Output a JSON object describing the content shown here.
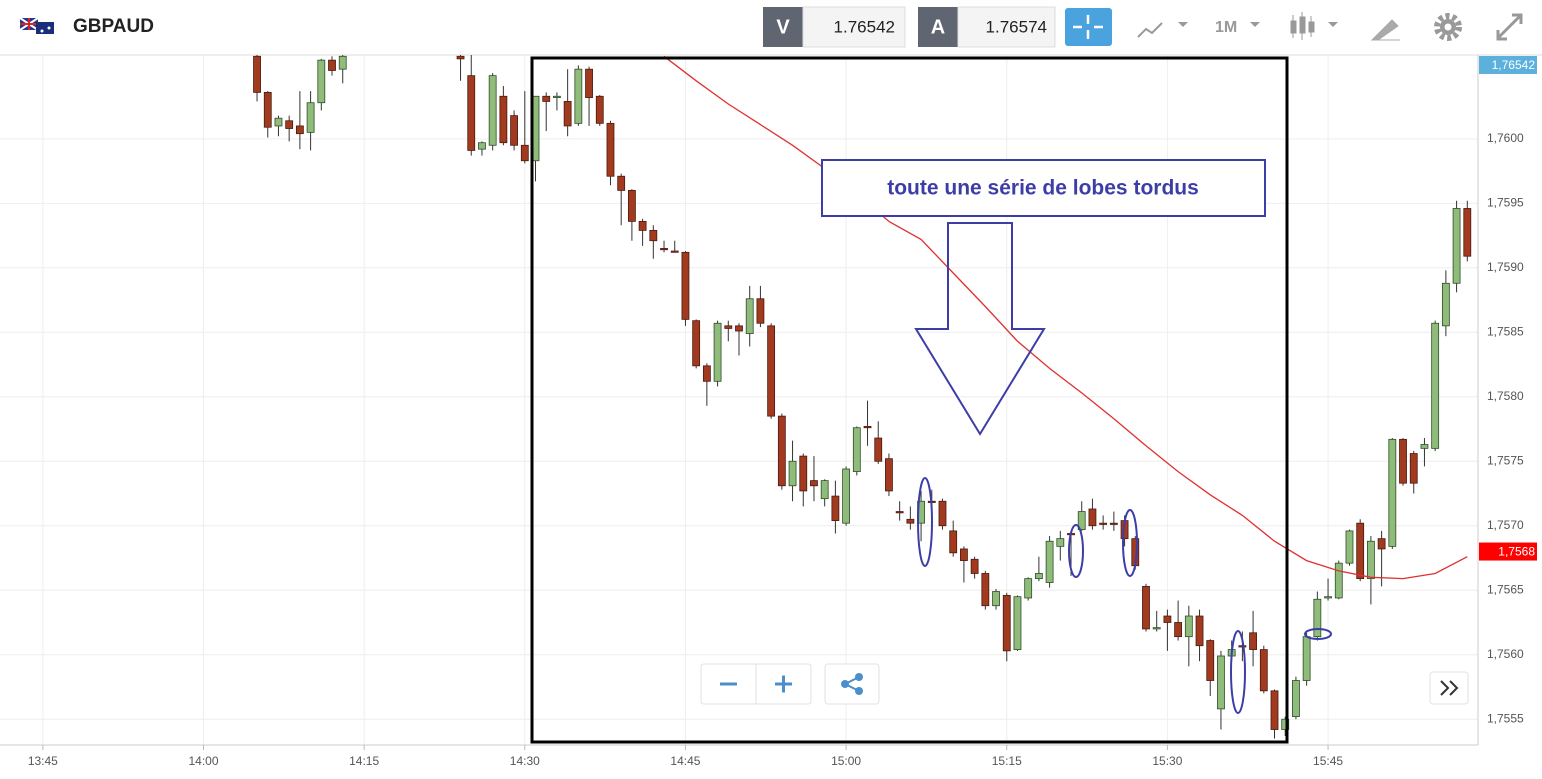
{
  "header": {
    "symbol": "GBPAUD",
    "bid_label": "V",
    "bid": "1.76542",
    "ask_label": "A",
    "ask": "1.76574",
    "timeframe": "1M"
  },
  "chart_data": {
    "type": "candlestick",
    "annotation": "toute une série de lobes tordus",
    "up_color": "#8fbc7a",
    "down_color": "#a23a1f",
    "ma_color": "#e03030",
    "grid": true,
    "xlim": [
      "13:41",
      "15:59"
    ],
    "xticks": [
      "13:45",
      "14:00",
      "14:15",
      "14:30",
      "14:45",
      "15:00",
      "15:15",
      "15:30",
      "15:45"
    ],
    "ylim": [
      1.7553,
      1.76065
    ],
    "yticks": [
      {
        "value": 1.7555,
        "label": "1,7555"
      },
      {
        "value": 1.756,
        "label": "1,7560"
      },
      {
        "value": 1.7565,
        "label": "1,7565"
      },
      {
        "value": 1.757,
        "label": "1,7570"
      },
      {
        "value": 1.7575,
        "label": "1,7575"
      },
      {
        "value": 1.758,
        "label": "1,7580"
      },
      {
        "value": 1.7585,
        "label": "1,7585"
      },
      {
        "value": 1.759,
        "label": "1,7590"
      },
      {
        "value": 1.7595,
        "label": "1,7595"
      },
      {
        "value": 1.76,
        "label": "1,7600"
      }
    ],
    "price_tags": [
      {
        "value": 1.76542,
        "label": "1,76542",
        "color": "#5bb0dc"
      },
      {
        "value": 1.7568,
        "label": "1,7568",
        "color": "#ff0000"
      }
    ],
    "x": [
      "14:05",
      "14:06",
      "14:07",
      "14:08",
      "14:09",
      "14:10",
      "14:11",
      "14:12",
      "14:13",
      "14:24",
      "14:25",
      "14:26",
      "14:27",
      "14:28",
      "14:29",
      "14:30",
      "14:31",
      "14:32",
      "14:33",
      "14:34",
      "14:35",
      "14:36",
      "14:37",
      "14:38",
      "14:39",
      "14:40",
      "14:41",
      "14:42",
      "14:43",
      "14:44",
      "14:45",
      "14:46",
      "14:47",
      "14:48",
      "14:49",
      "14:50",
      "14:51",
      "14:52",
      "14:53",
      "14:54",
      "14:55",
      "14:56",
      "14:57",
      "14:58",
      "14:59",
      "15:00",
      "15:01",
      "15:02",
      "15:03",
      "15:04",
      "15:05",
      "15:06",
      "15:07",
      "15:08",
      "15:09",
      "15:10",
      "15:11",
      "15:12",
      "15:13",
      "15:14",
      "15:15",
      "15:16",
      "15:17",
      "15:18",
      "15:19",
      "15:20",
      "15:21",
      "15:22",
      "15:23",
      "15:24",
      "15:25",
      "15:26",
      "15:27",
      "15:28",
      "15:29",
      "15:30",
      "15:31",
      "15:32",
      "15:33",
      "15:34",
      "15:35",
      "15:36",
      "15:37",
      "15:38",
      "15:39",
      "15:40",
      "15:41",
      "15:42",
      "15:43",
      "15:44",
      "15:45",
      "15:46",
      "15:47",
      "15:48",
      "15:49",
      "15:50",
      "15:51",
      "15:52",
      "15:53",
      "15:54",
      "15:55",
      "15:56",
      "15:57",
      "15:58"
    ],
    "open": [
      1.76064,
      1.76036,
      1.7601,
      1.76014,
      1.7601,
      1.76005,
      1.76028,
      1.76061,
      1.76054,
      1.76064,
      1.76049,
      1.75992,
      1.75995,
      1.76033,
      1.76018,
      1.75995,
      1.75983,
      1.76033,
      1.76032,
      1.76029,
      1.76012,
      1.76054,
      1.76033,
      1.76012,
      1.75971,
      1.7596,
      1.75936,
      1.75929,
      1.75915,
      1.75913,
      1.75912,
      1.75859,
      1.75824,
      1.75812,
      1.75855,
      1.75855,
      1.75849,
      1.75876,
      1.75855,
      1.75785,
      1.75731,
      1.75754,
      1.75735,
      1.75721,
      1.75723,
      1.75702,
      1.75742,
      1.75777,
      1.75768,
      1.75752,
      1.75711,
      1.75705,
      1.75702,
      1.75719,
      1.75719,
      1.75696,
      1.75682,
      1.75674,
      1.75663,
      1.75638,
      1.75646,
      1.75604,
      1.75644,
      1.75659,
      1.75656,
      1.75684,
      1.75694,
      1.75697,
      1.75713,
      1.75702,
      1.75702,
      1.75704,
      1.7569,
      1.75653,
      1.7562,
      1.7563,
      1.75625,
      1.75614,
      1.7563,
      1.75611,
      1.75558,
      1.75599,
      1.75607,
      1.75617,
      1.75604,
      1.75572,
      1.75542,
      1.75552,
      1.7558,
      1.75614,
      1.75644,
      1.75644,
      1.75671,
      1.75702,
      1.75659,
      1.7569,
      1.75684,
      1.75767,
      1.75756,
      1.7576,
      1.7576,
      1.75855,
      1.75888,
      1.75946
    ],
    "high": [
      1.7607,
      1.76037,
      1.76018,
      1.76018,
      1.76037,
      1.76037,
      1.76062,
      1.76064,
      1.76068,
      1.76068,
      1.76068,
      1.75998,
      1.76051,
      1.76041,
      1.76022,
      1.76037,
      1.76033,
      1.76036,
      1.76036,
      1.76054,
      1.76057,
      1.76056,
      1.76034,
      1.76014,
      1.75973,
      1.75961,
      1.75938,
      1.75933,
      1.75921,
      1.75921,
      1.75913,
      1.7586,
      1.75826,
      1.75859,
      1.75859,
      1.75857,
      1.75886,
      1.75886,
      1.75857,
      1.75787,
      1.75766,
      1.75756,
      1.75754,
      1.75736,
      1.75735,
      1.75746,
      1.75777,
      1.75797,
      1.75781,
      1.75756,
      1.75719,
      1.75715,
      1.75727,
      1.75728,
      1.75721,
      1.75704,
      1.75684,
      1.75676,
      1.75665,
      1.75651,
      1.75648,
      1.75646,
      1.7566,
      1.75676,
      1.75692,
      1.75696,
      1.75696,
      1.75719,
      1.75721,
      1.75708,
      1.75711,
      1.75708,
      1.75692,
      1.75655,
      1.75634,
      1.75635,
      1.75642,
      1.75638,
      1.75635,
      1.75612,
      1.75603,
      1.75611,
      1.75618,
      1.75634,
      1.75607,
      1.75573,
      1.75552,
      1.75583,
      1.75617,
      1.75649,
      1.75659,
      1.75673,
      1.75697,
      1.75705,
      1.75692,
      1.75696,
      1.75768,
      1.75768,
      1.75758,
      1.75768,
      1.75859,
      1.75898,
      1.75952,
      1.75952
    ],
    "low": [
      1.76029,
      1.76001,
      1.76002,
      1.75998,
      1.75992,
      1.75991,
      1.76022,
      1.76049,
      1.76043,
      1.76045,
      1.75987,
      1.75987,
      1.75991,
      1.75995,
      1.75991,
      1.75981,
      1.75967,
      1.76006,
      1.76022,
      1.76002,
      1.7601,
      1.7601,
      1.7601,
      1.75964,
      1.75933,
      1.75921,
      1.75917,
      1.75907,
      1.75912,
      1.75912,
      1.75855,
      1.75822,
      1.75793,
      1.75808,
      1.75843,
      1.75832,
      1.75839,
      1.75854,
      1.75783,
      1.75728,
      1.75719,
      1.75715,
      1.75719,
      1.75715,
      1.75694,
      1.757,
      1.75739,
      1.75762,
      1.75748,
      1.75723,
      1.75704,
      1.75697,
      1.75688,
      1.75711,
      1.75697,
      1.75676,
      1.75656,
      1.75659,
      1.75635,
      1.75635,
      1.75595,
      1.75603,
      1.75642,
      1.75657,
      1.75652,
      1.75673,
      1.75661,
      1.75696,
      1.75697,
      1.75697,
      1.75696,
      1.75684,
      1.75666,
      1.75618,
      1.75618,
      1.75603,
      1.75611,
      1.75591,
      1.75595,
      1.75568,
      1.75542,
      1.75595,
      1.75595,
      1.75591,
      1.7557,
      1.75535,
      1.75537,
      1.7555,
      1.75576,
      1.75611,
      1.75642,
      1.75643,
      1.75669,
      1.75657,
      1.75639,
      1.75653,
      1.75682,
      1.75731,
      1.75725,
      1.75746,
      1.75758,
      1.75847,
      1.75881,
      1.75905
    ],
    "close": [
      1.76036,
      1.76009,
      1.76016,
      1.76008,
      1.76004,
      1.76028,
      1.76061,
      1.76053,
      1.76064,
      1.76062,
      1.75991,
      1.75997,
      1.76049,
      1.75997,
      1.75995,
      1.75983,
      1.76033,
      1.76029,
      1.76033,
      1.7601,
      1.76054,
      1.76032,
      1.76012,
      1.75971,
      1.7596,
      1.75936,
      1.75929,
      1.75921,
      1.75914,
      1.75912,
      1.7586,
      1.75824,
      1.75812,
      1.75857,
      1.75853,
      1.75851,
      1.75876,
      1.75857,
      1.75785,
      1.75731,
      1.7575,
      1.75727,
      1.75731,
      1.75735,
      1.75704,
      1.75744,
      1.75776,
      1.75776,
      1.7575,
      1.75727,
      1.7571,
      1.75702,
      1.75719,
      1.75718,
      1.757,
      1.75679,
      1.75673,
      1.75663,
      1.75638,
      1.75649,
      1.75603,
      1.75645,
      1.75659,
      1.75663,
      1.75688,
      1.7569,
      1.75693,
      1.75711,
      1.757,
      1.75701,
      1.75701,
      1.7569,
      1.75669,
      1.7562,
      1.75621,
      1.75625,
      1.75614,
      1.7563,
      1.75607,
      1.7558,
      1.75599,
      1.75604,
      1.75606,
      1.75604,
      1.75572,
      1.75542,
      1.7555,
      1.7558,
      1.75614,
      1.75643,
      1.75645,
      1.75671,
      1.75696,
      1.75659,
      1.75688,
      1.75682,
      1.75767,
      1.75733,
      1.75733,
      1.75763,
      1.75857,
      1.75888,
      1.75946,
      1.75909
    ],
    "ma_x": [
      "14:43",
      "14:46",
      "14:49",
      "14:52",
      "14:55",
      "14:58",
      "15:01",
      "15:04",
      "15:07",
      "15:10",
      "15:13",
      "15:16",
      "15:19",
      "15:22",
      "15:25",
      "15:28",
      "15:31",
      "15:34",
      "15:37",
      "15:40",
      "15:43",
      "15:46",
      "15:49",
      "15:52",
      "15:55",
      "15:58"
    ],
    "ma_values": [
      1.76064,
      1.76045,
      1.76027,
      1.76011,
      1.75995,
      1.75977,
      1.75957,
      1.75936,
      1.75922,
      1.75896,
      1.7587,
      1.75843,
      1.75822,
      1.75803,
      1.75783,
      1.75762,
      1.75742,
      1.75724,
      1.75708,
      1.75688,
      1.75673,
      1.75665,
      1.7566,
      1.75659,
      1.75663,
      1.75676
    ]
  }
}
